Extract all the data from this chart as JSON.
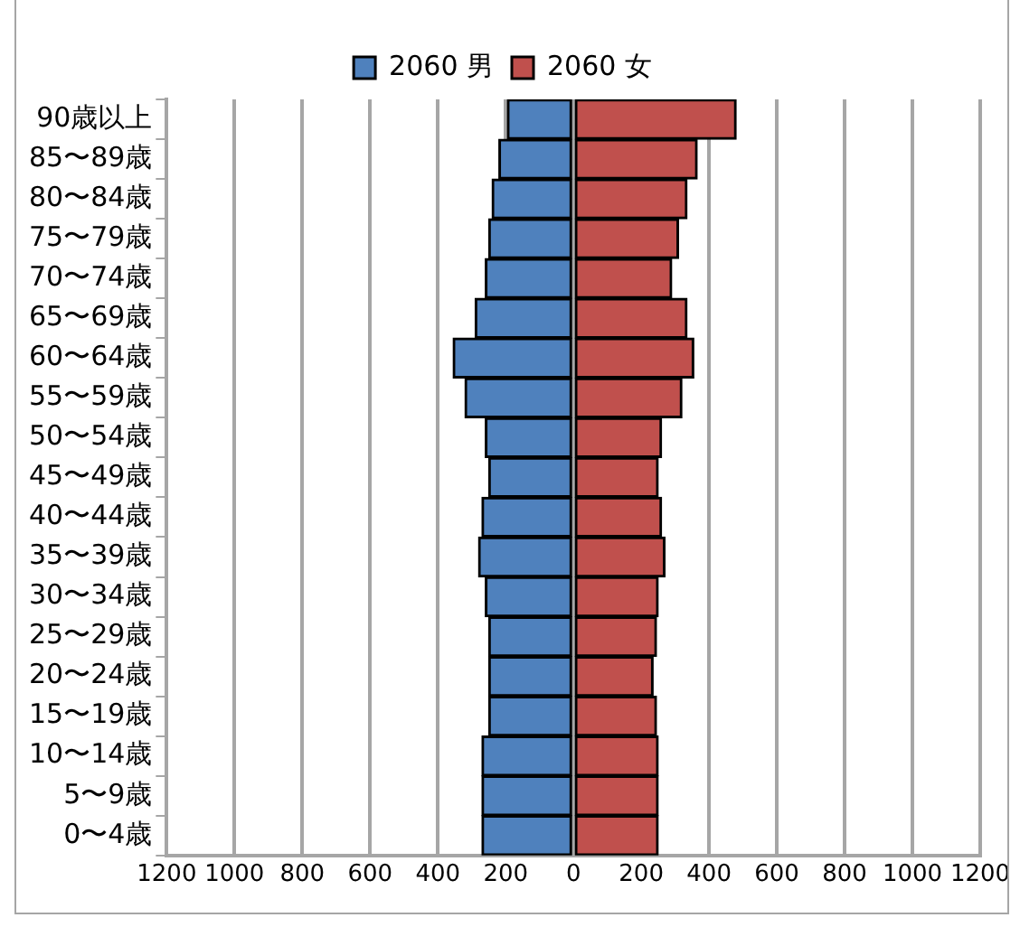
{
  "chart_data": {
    "type": "bar",
    "orientation": "horizontal",
    "stacked": true,
    "categories": [
      "90歳以上",
      "85〜89歳",
      "80〜84歳",
      "75〜79歳",
      "70〜74歳",
      "65〜69歳",
      "60〜64歳",
      "55〜59歳",
      "50〜54歳",
      "45〜49歳",
      "40〜44歳",
      "35〜39歳",
      "30〜34歳",
      "25〜29歳",
      "20〜24歳",
      "15〜19歳",
      "10〜14歳",
      "5〜9歳",
      "0〜4歳"
    ],
    "series": [
      {
        "name": "2060 男",
        "color": "#4f81bd",
        "values": [
          -195,
          -220,
          -240,
          -250,
          -260,
          -290,
          -355,
          -320,
          -260,
          -250,
          -270,
          -280,
          -260,
          -250,
          -250,
          -250,
          -270,
          -270,
          -270
        ]
      },
      {
        "name": "2060 女",
        "color": "#c0504d",
        "values": [
          480,
          365,
          335,
          310,
          290,
          335,
          355,
          320,
          260,
          250,
          260,
          270,
          250,
          245,
          235,
          245,
          250,
          250,
          250
        ]
      }
    ],
    "xlim": [
      -1200,
      1200
    ],
    "xticks": [
      {
        "value": -1200,
        "label": "1200"
      },
      {
        "value": -1000,
        "label": "1000"
      },
      {
        "value": -800,
        "label": "800"
      },
      {
        "value": -600,
        "label": "600"
      },
      {
        "value": -400,
        "label": "400"
      },
      {
        "value": -200,
        "label": "200"
      },
      0,
      200,
      400,
      600,
      800,
      1000,
      1200
    ],
    "grid": "x",
    "legend": "top"
  }
}
